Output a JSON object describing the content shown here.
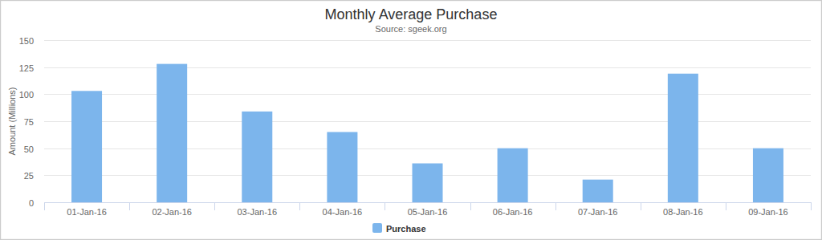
{
  "chart_data": {
    "type": "bar",
    "title": "Monthly Average Purchase",
    "subtitle": "Source: sgeek.org",
    "y_label": "Amount (Millions)",
    "categories": [
      "01-Jan-16",
      "02-Jan-16",
      "03-Jan-16",
      "04-Jan-16",
      "05-Jan-16",
      "06-Jan-16",
      "07-Jan-16",
      "08-Jan-16",
      "09-Jan-16"
    ],
    "series": [
      {
        "name": "Purchase",
        "color": "#7cb5ec",
        "values": [
          103,
          128,
          84,
          65,
          36,
          50,
          21,
          119,
          50
        ]
      }
    ],
    "ylim": [
      0,
      150
    ],
    "yticks": [
      0,
      25,
      50,
      75,
      100,
      125,
      150
    ],
    "grid": true,
    "legend": "bottom"
  }
}
